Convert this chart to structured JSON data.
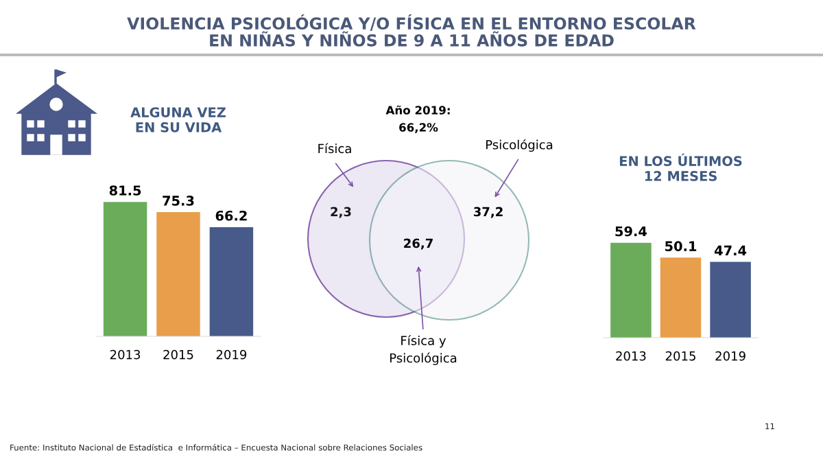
{
  "chart_data": [
    {
      "type": "other",
      "title": "VIOLENCIA PSICOLÓGICA Y/O FÍSICA EN EL ENTORNO ESCOLAR\nEN NIÑAS Y NIÑOS DE 9 A 11 AÑOS DE EDAD",
      "annotations": [
        "Fuente: Instituto Nacional de Estadística  e Informática – Encuesta Nacional sobre Relaciones Sociales",
        "11"
      ]
    },
    {
      "type": "bar",
      "title": "ALGUNA VEZ\nEN SU VIDA",
      "categories": [
        "2013",
        "2015",
        "2019"
      ],
      "values": [
        81.5,
        75.3,
        66.2
      ],
      "colors": [
        "#6aac5a",
        "#e99e4b",
        "#475a89"
      ],
      "data_labels": true
    },
    {
      "type": "other",
      "title": "Año 2019:",
      "subtitle": "66,2%",
      "categories": [
        "Física",
        "Psicológica",
        "Física y\nPsicológica"
      ],
      "values": [
        2.3,
        37.2,
        26.7
      ],
      "value_labels": [
        "2,3",
        "37,2",
        "26,7"
      ],
      "colors": [
        "#7b52a8",
        "#4e8c88",
        "#7b52a8"
      ]
    },
    {
      "type": "bar",
      "title": "EN LOS ÚLTIMOS\n12 MESES",
      "categories": [
        "2013",
        "2015",
        "2019"
      ],
      "values": [
        59.4,
        50.1,
        47.4
      ],
      "colors": [
        "#6aac5a",
        "#e99e4b",
        "#475a89"
      ],
      "data_labels": true
    }
  ]
}
